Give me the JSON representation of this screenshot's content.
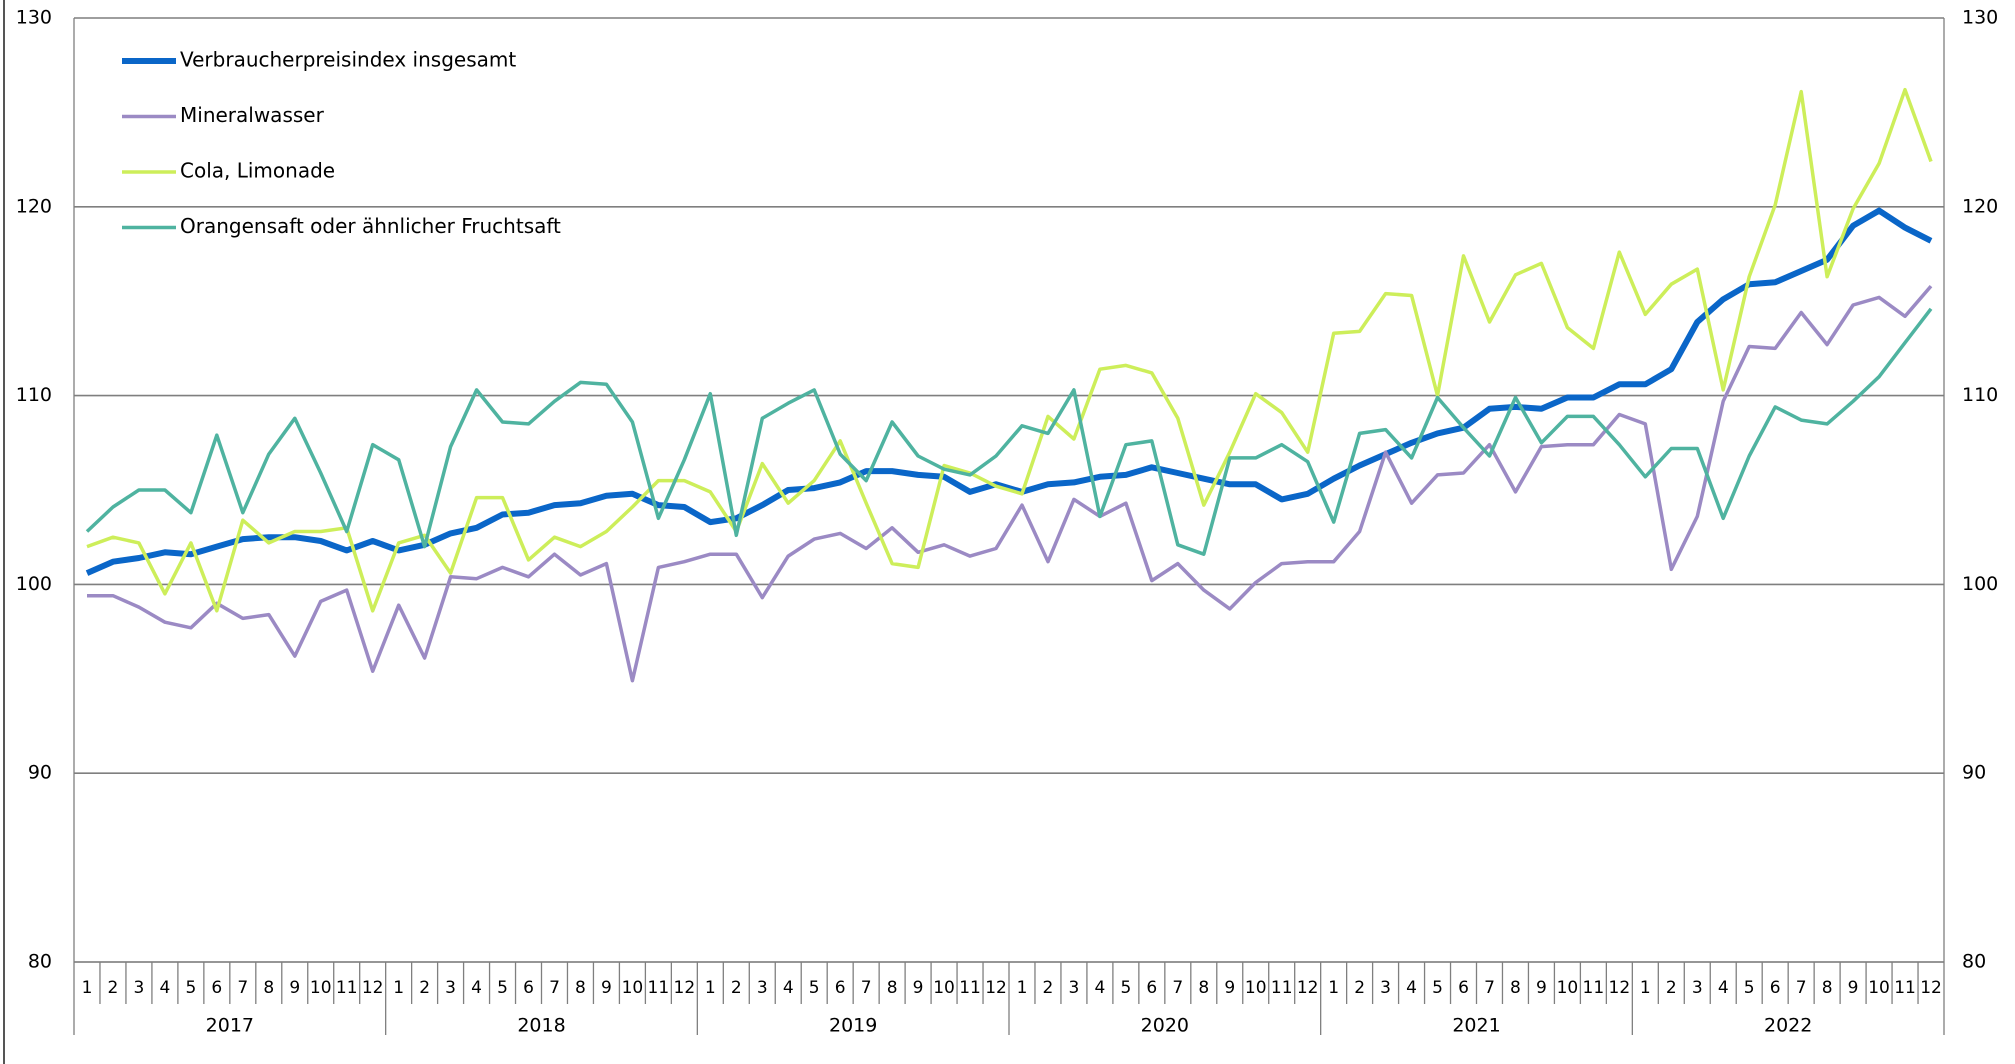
{
  "chart_data": {
    "type": "line",
    "categories": [
      "1",
      "2",
      "3",
      "4",
      "5",
      "6",
      "7",
      "8",
      "9",
      "10",
      "11",
      "12",
      "1",
      "2",
      "3",
      "4",
      "5",
      "6",
      "7",
      "8",
      "9",
      "10",
      "11",
      "12",
      "1",
      "2",
      "3",
      "4",
      "5",
      "6",
      "7",
      "8",
      "9",
      "10",
      "11",
      "12",
      "1",
      "2",
      "3",
      "4",
      "5",
      "6",
      "7",
      "8",
      "9",
      "10",
      "11",
      "12",
      "1",
      "2",
      "3",
      "4",
      "5",
      "6",
      "7",
      "8",
      "9",
      "10",
      "11",
      "12",
      "1",
      "2",
      "3",
      "4",
      "5",
      "6",
      "7",
      "8",
      "9",
      "10",
      "11",
      "12"
    ],
    "years": [
      "2017",
      "2018",
      "2019",
      "2020",
      "2021",
      "2022"
    ],
    "ylim": [
      80,
      130
    ],
    "yticks": [
      80,
      90,
      100,
      110,
      120,
      130
    ],
    "grid": true,
    "legend": "top-left",
    "series": [
      {
        "name": "Verbraucherpreisindex insgesamt",
        "color": "#0a66c8",
        "values": [
          100.6,
          101.2,
          101.4,
          101.7,
          101.6,
          102.0,
          102.4,
          102.5,
          102.5,
          102.3,
          101.8,
          102.3,
          101.8,
          102.1,
          102.7,
          103.0,
          103.7,
          103.8,
          104.2,
          104.3,
          104.7,
          104.8,
          104.2,
          104.1,
          103.3,
          103.5,
          104.2,
          105.0,
          105.1,
          105.4,
          106.0,
          106.0,
          105.8,
          105.7,
          104.9,
          105.3,
          104.9,
          105.3,
          105.4,
          105.7,
          105.8,
          106.2,
          105.9,
          105.6,
          105.3,
          105.3,
          104.5,
          104.8,
          105.6,
          106.3,
          106.9,
          107.5,
          108.0,
          108.3,
          109.3,
          109.4,
          109.3,
          109.9,
          109.9,
          110.6,
          110.6,
          111.4,
          113.9,
          115.1,
          115.9,
          116.0,
          116.6,
          117.2,
          119.0,
          119.8,
          118.9,
          118.2
        ]
      },
      {
        "name": "Mineralwasser",
        "color": "#9b8ac4",
        "values": [
          99.4,
          99.4,
          98.8,
          98.0,
          97.7,
          99.0,
          98.2,
          98.4,
          96.2,
          99.1,
          99.7,
          95.4,
          98.9,
          96.1,
          100.4,
          100.3,
          100.9,
          100.4,
          101.6,
          100.5,
          101.1,
          94.9,
          100.9,
          101.2,
          101.6,
          101.6,
          99.3,
          101.5,
          102.4,
          102.7,
          101.9,
          103.0,
          101.7,
          102.1,
          101.5,
          101.9,
          104.2,
          101.2,
          104.5,
          103.6,
          104.3,
          100.2,
          101.1,
          99.7,
          98.7,
          100.1,
          101.1,
          101.2,
          101.2,
          102.8,
          107.0,
          104.3,
          105.8,
          105.9,
          107.4,
          104.9,
          107.3,
          107.4,
          107.4,
          109.0,
          108.5,
          100.8,
          103.6,
          109.7,
          112.6,
          112.5,
          114.4,
          112.7,
          114.8,
          115.2,
          114.2,
          115.8
        ]
      },
      {
        "name": "Cola, Limonade",
        "color": "#cdee5a",
        "values": [
          102.0,
          102.5,
          102.2,
          99.5,
          102.2,
          98.6,
          103.4,
          102.2,
          102.8,
          102.8,
          103.0,
          98.6,
          102.2,
          102.6,
          100.6,
          104.6,
          104.6,
          101.3,
          102.5,
          102.0,
          102.8,
          104.1,
          105.5,
          105.5,
          104.9,
          102.8,
          106.4,
          104.3,
          105.5,
          107.6,
          104.3,
          101.1,
          100.9,
          106.3,
          105.9,
          105.2,
          104.8,
          108.9,
          107.7,
          111.4,
          111.6,
          111.2,
          108.8,
          104.2,
          107.0,
          110.1,
          109.1,
          107.0,
          113.3,
          113.4,
          115.4,
          115.3,
          110.0,
          117.4,
          113.9,
          116.4,
          117.0,
          113.6,
          112.5,
          117.6,
          114.3,
          115.9,
          116.7,
          110.3,
          116.3,
          120.1,
          126.1,
          116.3,
          119.9,
          122.3,
          126.2,
          122.4
        ]
      },
      {
        "name": "Orangensaft oder ähnlicher Fruchtsaft",
        "color": "#4fb3a0",
        "values": [
          102.8,
          104.1,
          105.0,
          105.0,
          103.8,
          107.9,
          103.8,
          106.9,
          108.8,
          105.9,
          102.8,
          107.4,
          106.6,
          102.0,
          107.3,
          110.3,
          108.6,
          108.5,
          109.7,
          110.7,
          110.6,
          108.6,
          103.5,
          106.6,
          110.1,
          102.6,
          108.8,
          109.6,
          110.3,
          106.9,
          105.5,
          108.6,
          106.8,
          106.1,
          105.8,
          106.8,
          108.4,
          108.0,
          110.3,
          103.6,
          107.4,
          107.6,
          102.1,
          101.6,
          106.7,
          106.7,
          107.4,
          106.5,
          103.3,
          108.0,
          108.2,
          106.7,
          109.9,
          108.3,
          106.8,
          109.9,
          107.5,
          108.9,
          108.9,
          107.4,
          105.7,
          107.2,
          107.2,
          103.5,
          106.8,
          109.4,
          108.7,
          108.5,
          109.7,
          111.0,
          112.8,
          114.6
        ]
      }
    ]
  }
}
